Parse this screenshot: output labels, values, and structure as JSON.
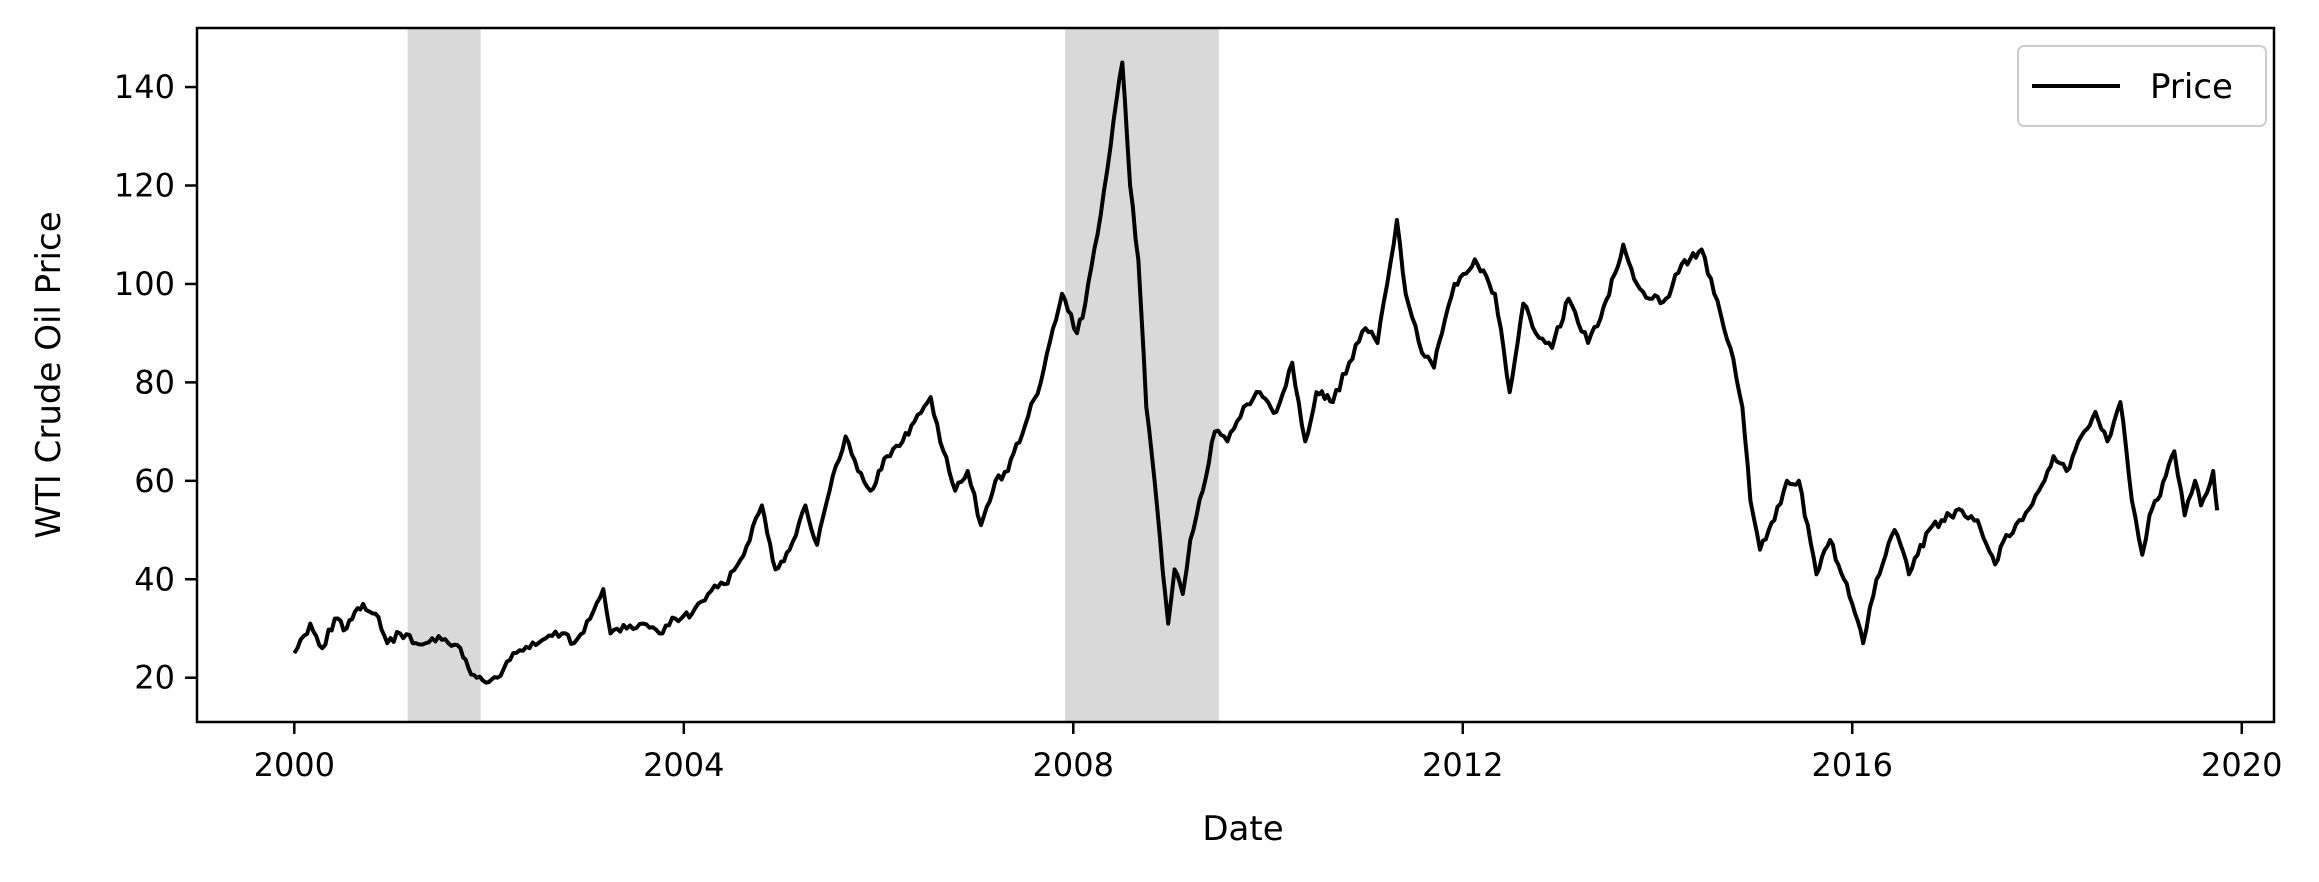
{
  "chart_data": {
    "type": "line",
    "title": "",
    "xlabel": "Date",
    "ylabel": "WTI Crude Oil Price",
    "x_ticks": [
      "2000",
      "2004",
      "2008",
      "2012",
      "2016",
      "2020"
    ],
    "y_ticks": [
      20,
      40,
      60,
      80,
      100,
      120,
      140
    ],
    "xlim": [
      "1999-01-01",
      "2020-05-01"
    ],
    "ylim": [
      11,
      152
    ],
    "grid": false,
    "legend": {
      "position": "top-right",
      "entries": [
        "Price"
      ]
    },
    "shaded_periods": [
      {
        "start": "2001-03-01",
        "end": "2001-11-30",
        "color": "#d9d9d9"
      },
      {
        "start": "2007-12-01",
        "end": "2009-06-30",
        "color": "#d9d9d9"
      }
    ],
    "series": [
      {
        "name": "Price",
        "color": "#000000",
        "x": [
          "2000-01-01",
          "2000-03-01",
          "2000-04-15",
          "2000-06-01",
          "2000-07-15",
          "2000-09-15",
          "2000-11-01",
          "2000-12-15",
          "2001-02-01",
          "2001-04-01",
          "2001-06-01",
          "2001-08-01",
          "2001-09-15",
          "2001-10-15",
          "2001-11-15",
          "2001-12-20",
          "2002-02-01",
          "2002-04-01",
          "2002-06-01",
          "2002-08-01",
          "2002-10-01",
          "2002-11-15",
          "2003-01-15",
          "2003-03-05",
          "2003-04-01",
          "2003-06-01",
          "2003-08-01",
          "2003-10-01",
          "2003-12-01",
          "2004-02-01",
          "2004-04-01",
          "2004-06-01",
          "2004-08-01",
          "2004-10-20",
          "2004-12-10",
          "2005-02-01",
          "2005-04-01",
          "2005-05-15",
          "2005-07-01",
          "2005-08-30",
          "2005-10-15",
          "2005-12-01",
          "2006-02-01",
          "2006-04-01",
          "2006-05-15",
          "2006-07-15",
          "2006-09-01",
          "2006-10-15",
          "2006-12-01",
          "2007-01-20",
          "2007-03-15",
          "2007-05-01",
          "2007-07-15",
          "2007-09-01",
          "2007-11-20",
          "2008-01-15",
          "2008-02-15",
          "2008-04-01",
          "2008-05-20",
          "2008-07-03",
          "2008-08-01",
          "2008-09-01",
          "2008-10-01",
          "2008-11-01",
          "2008-12-22",
          "2009-01-15",
          "2009-02-15",
          "2009-03-15",
          "2009-05-01",
          "2009-06-15",
          "2009-08-01",
          "2009-10-01",
          "2009-12-01",
          "2010-02-01",
          "2010-04-01",
          "2010-05-20",
          "2010-07-01",
          "2010-09-01",
          "2010-11-01",
          "2011-01-01",
          "2011-02-15",
          "2011-04-29",
          "2011-06-01",
          "2011-08-01",
          "2011-09-15",
          "2011-10-15",
          "2011-12-01",
          "2012-02-15",
          "2012-05-01",
          "2012-06-25",
          "2012-08-15",
          "2012-10-01",
          "2012-12-01",
          "2013-02-01",
          "2013-04-15",
          "2013-06-01",
          "2013-08-25",
          "2013-10-15",
          "2013-12-01",
          "2014-02-01",
          "2014-04-01",
          "2014-06-15",
          "2014-08-01",
          "2014-10-01",
          "2014-11-15",
          "2014-12-15",
          "2015-01-20",
          "2015-03-15",
          "2015-05-01",
          "2015-06-15",
          "2015-08-20",
          "2015-10-10",
          "2015-12-01",
          "2016-01-01",
          "2016-02-11",
          "2016-04-01",
          "2016-06-08",
          "2016-08-01",
          "2016-10-15",
          "2016-12-01",
          "2017-02-15",
          "2017-04-15",
          "2017-06-20",
          "2017-08-01",
          "2017-10-01",
          "2017-12-01",
          "2018-01-25",
          "2018-03-15",
          "2018-05-20",
          "2018-07-01",
          "2018-08-15",
          "2018-10-03",
          "2018-11-15",
          "2018-12-24",
          "2019-01-20",
          "2019-03-01",
          "2019-04-23",
          "2019-06-01",
          "2019-07-10",
          "2019-08-01",
          "2019-09-16",
          "2019-10-01"
        ],
        "values": [
          25,
          31,
          26,
          32,
          30,
          35,
          33,
          27,
          29,
          27,
          28,
          27,
          26,
          22,
          20,
          19,
          20,
          25,
          26,
          28,
          29,
          27,
          32,
          38,
          29,
          30,
          31,
          29,
          32,
          33,
          37,
          39,
          44,
          55,
          42,
          46,
          55,
          47,
          58,
          69,
          62,
          58,
          65,
          68,
          72,
          77,
          66,
          58,
          62,
          51,
          60,
          62,
          73,
          80,
          98,
          90,
          96,
          110,
          128,
          145,
          120,
          105,
          75,
          60,
          31,
          42,
          37,
          48,
          58,
          70,
          68,
          75,
          78,
          74,
          84,
          68,
          78,
          76,
          84,
          91,
          88,
          113,
          98,
          86,
          83,
          90,
          100,
          105,
          98,
          78,
          96,
          90,
          87,
          97,
          88,
          93,
          108,
          100,
          97,
          97,
          104,
          107,
          98,
          87,
          75,
          56,
          46,
          52,
          60,
          60,
          41,
          48,
          40,
          35,
          27,
          40,
          50,
          41,
          50,
          52,
          54,
          52,
          43,
          49,
          52,
          58,
          65,
          62,
          70,
          74,
          68,
          76,
          56,
          45,
          53,
          57,
          66,
          53,
          60,
          55,
          62,
          54
        ]
      }
    ]
  }
}
